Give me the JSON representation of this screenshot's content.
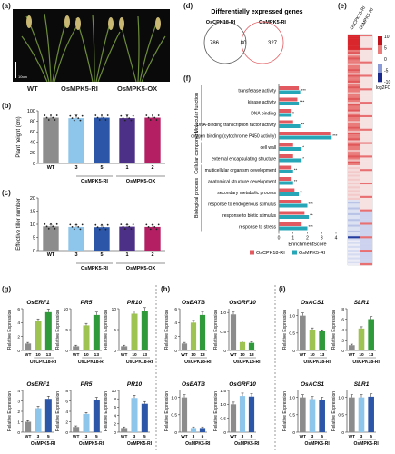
{
  "figure": {
    "panel_labels": [
      "(a)",
      "(b)",
      "(c)",
      "(d)",
      "(e)",
      "(f)",
      "(g)",
      "(h)",
      "(i)"
    ],
    "colors": {
      "wt": "#8c8c8c",
      "ri_light": "#8ec5ea",
      "ri_dark": "#2c57a8",
      "ox_purple": "#4c2f86",
      "ox_magenta": "#b41e63",
      "cpk_light": "#9fc352",
      "cpk_dark": "#2f9a39",
      "red": "#e25a5f",
      "teal": "#26a6b6"
    }
  },
  "panel_a": {
    "labels": [
      "WT",
      "OsMPK5-RI",
      "OsMPK5-OX"
    ],
    "scale_bar": "10cm"
  },
  "panel_b": {
    "ylabel": "Plant height (cm)",
    "group_labels": [
      "OsMPK5-RI",
      "OsMPK5-OX"
    ],
    "chart_data": {
      "type": "bar",
      "categories": [
        "WT",
        "3",
        "5",
        "1",
        "2"
      ],
      "values": [
        87,
        86,
        87,
        86,
        87
      ],
      "yticks": [
        "0",
        "20",
        "40",
        "60",
        "80",
        "100"
      ],
      "ylim": [
        0,
        100
      ]
    }
  },
  "panel_c": {
    "ylabel": "Effective tiller number",
    "group_labels": [
      "OsMPK5-RI",
      "OsMPK5-OX"
    ],
    "chart_data": {
      "type": "bar",
      "categories": [
        "WT",
        "3",
        "5",
        "1",
        "2"
      ],
      "values": [
        9.2,
        9.0,
        8.9,
        9.1,
        9.0
      ],
      "yticks": [
        "0",
        "5",
        "10",
        "15",
        "20"
      ],
      "ylim": [
        0,
        20
      ]
    }
  },
  "panel_d": {
    "title": "Differentially expressed genes",
    "set1": "OsCPK18-RI",
    "set2": "OsMPK5-RI",
    "only1": "786",
    "both": "80",
    "only2": "327"
  },
  "panel_e": {
    "columns": [
      "OsCPK18-RI",
      "OsMPK5-RI"
    ],
    "colorbar_ticks": [
      "10",
      "5",
      "0",
      "-5",
      "-10"
    ],
    "colorbar_label": "log2FC"
  },
  "panel_f": {
    "xlabel": "EnrichmentScore",
    "xticks": [
      "0",
      "1",
      "2",
      "3",
      "4"
    ],
    "categories_groups": [
      "Molecular function",
      "Cellular component",
      "Biological process"
    ],
    "legend": [
      "OsCPK18-RI",
      "OsMPK5-RI"
    ],
    "chart_data": {
      "type": "bar",
      "categories": [
        "transferase activity",
        "kinase activity",
        "DNA binding",
        "DNA-binding transcription factor activity",
        "oxygen binding (cytochrome P450 activity)",
        "cell wall",
        "external encapsulating structure",
        "multicellular organism development",
        "anatomical structure development",
        "secondary metabolic process",
        "response to endogenous stimulus",
        "response to biotic stimulus",
        "response to stress"
      ],
      "series": [
        {
          "name": "OsCPK18-RI",
          "values": [
            1.4,
            1.3,
            0.9,
            1.0,
            3.6,
            1.0,
            1.0,
            0.9,
            0.9,
            1.1,
            1.6,
            1.8,
            1.6
          ]
        },
        {
          "name": "OsMPK5-RI",
          "values": [
            1.5,
            1.4,
            0.9,
            1.5,
            3.7,
            1.6,
            1.6,
            1.0,
            1.0,
            1.4,
            2.0,
            2.1,
            2.0
          ]
        }
      ],
      "stars": [
        "***",
        "***",
        "*",
        "**",
        "***",
        "*",
        "*",
        "**",
        "**",
        "**",
        "***",
        "**",
        "***"
      ],
      "xlim": [
        0,
        4
      ]
    }
  },
  "panel_g": {
    "genes_top": [
      "OsERF1",
      "PR5",
      "PR10"
    ],
    "genes_bottom": [
      "OsERF1",
      "PR5",
      "PR10"
    ],
    "ylabel": "Relative Expression",
    "top_group": "OsCPK18-RI",
    "bottom_group": "OsMPK5-RI",
    "top_ticks": [
      "WT",
      "10",
      "13"
    ],
    "bottom_ticks": [
      "WT",
      "3",
      "5"
    ],
    "charts_top": [
      {
        "values": [
          1,
          4.2,
          5.5
        ],
        "yticks": [
          "0",
          "2",
          "4",
          "6"
        ],
        "ylim": [
          0,
          6
        ]
      },
      {
        "values": [
          1,
          6.0,
          8.5
        ],
        "yticks": [
          "0",
          "5",
          "10"
        ],
        "ylim": [
          0,
          10
        ]
      },
      {
        "values": [
          1,
          8.8,
          9.5
        ],
        "yticks": [
          "0",
          "5",
          "10"
        ],
        "ylim": [
          0,
          10
        ]
      }
    ],
    "charts_bottom": [
      {
        "values": [
          1,
          2.3,
          3.2
        ],
        "yticks": [
          "0",
          "1",
          "2",
          "3",
          "4"
        ],
        "ylim": [
          0,
          4
        ]
      },
      {
        "values": [
          1,
          3.5,
          6.2
        ],
        "yticks": [
          "0",
          "2",
          "4",
          "6",
          "8"
        ],
        "ylim": [
          0,
          8
        ]
      },
      {
        "values": [
          1,
          8.2,
          6.8
        ],
        "yticks": [
          "0",
          "2",
          "4",
          "6",
          "8",
          "10"
        ],
        "ylim": [
          0,
          10
        ]
      }
    ]
  },
  "panel_h": {
    "genes_top": [
      "OsEATB",
      "OsGRF10"
    ],
    "genes_bottom": [
      "OsEATB",
      "OsGRF10"
    ],
    "ylabel": "Relative Expression",
    "top_group": "OsCPK18-RI",
    "bottom_group": "OsMPK5-RI",
    "top_ticks": [
      "WT",
      "10",
      "13"
    ],
    "bottom_ticks": [
      "WT",
      "3",
      "5"
    ],
    "charts_top": [
      {
        "values": [
          1,
          4.0,
          5.1
        ],
        "yticks": [
          "0",
          "2",
          "4",
          "6"
        ],
        "ylim": [
          0,
          6
        ]
      },
      {
        "values": [
          0.95,
          0.22,
          0.2
        ],
        "yticks": [
          "0",
          "0.5",
          "1.0"
        ],
        "ylim": [
          0,
          1.1
        ]
      }
    ],
    "charts_bottom": [
      {
        "values": [
          1,
          0.12,
          0.12
        ],
        "yticks": [
          "0",
          "0.5",
          "1.0"
        ],
        "ylim": [
          0,
          1.2
        ]
      },
      {
        "values": [
          1,
          1.3,
          1.28
        ],
        "yticks": [
          "0",
          "0.5",
          "1.0",
          "1.5"
        ],
        "ylim": [
          0,
          1.5
        ]
      }
    ]
  },
  "panel_i": {
    "genes_top": [
      "OsACS1",
      "SLR1"
    ],
    "genes_bottom": [
      "OsACS1",
      "SLR1"
    ],
    "ylabel": "Relative Expression",
    "top_group": "OsCPK18-RI",
    "bottom_group": "OsMPK5-RI",
    "top_ticks": [
      "WT",
      "10",
      "13"
    ],
    "bottom_ticks": [
      "WT",
      "3",
      "5"
    ],
    "charts_top": [
      {
        "values": [
          1,
          0.6,
          0.55
        ],
        "yticks": [
          "0",
          "0.5",
          "1.0"
        ],
        "ylim": [
          0,
          1.2
        ]
      },
      {
        "values": [
          1,
          4.2,
          6.0
        ],
        "yticks": [
          "0",
          "2",
          "4",
          "6",
          "8"
        ],
        "ylim": [
          0,
          8
        ]
      }
    ],
    "charts_bottom": [
      {
        "values": [
          1,
          0.95,
          0.93
        ],
        "yticks": [
          "0",
          "0.5",
          "1.0"
        ],
        "ylim": [
          0,
          1.2
        ]
      },
      {
        "values": [
          1,
          1.0,
          1.02
        ],
        "yticks": [
          "0",
          "0.5",
          "1.0"
        ],
        "ylim": [
          0,
          1.2
        ]
      }
    ]
  }
}
